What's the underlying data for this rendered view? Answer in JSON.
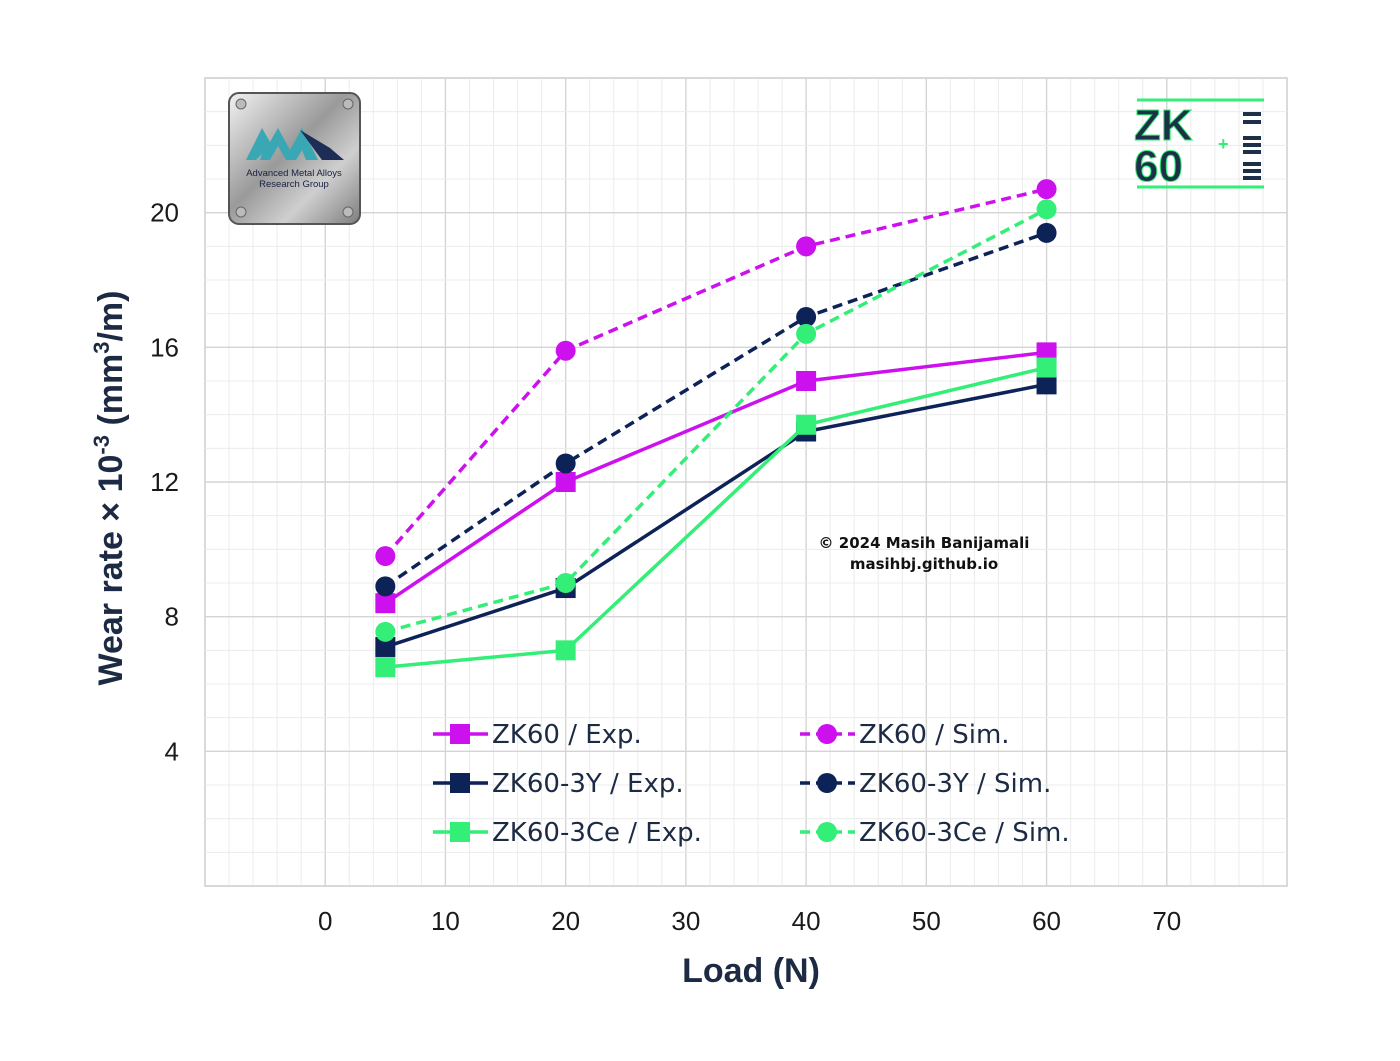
{
  "chart_data": {
    "type": "line",
    "xlabel": "Load (N)",
    "ylabel_main": "Wear rate × 10",
    "ylabel_exp": "-3",
    "ylabel_unit_pre": " (mm",
    "ylabel_unit_exp": "3",
    "ylabel_unit_post": "/m)",
    "xlim": [
      -10,
      80
    ],
    "ylim": [
      0,
      24
    ],
    "x_ticks": [
      0,
      10,
      20,
      30,
      40,
      50,
      60,
      70
    ],
    "y_ticks": [
      4,
      8,
      12,
      16,
      20
    ],
    "grid": true,
    "legend_position": "lower-center",
    "x": [
      5,
      20,
      40,
      60
    ],
    "series": [
      {
        "name": "ZK60 / Exp.",
        "values": [
          8.4,
          12.0,
          15.0,
          15.85
        ],
        "color": "#cc11ee",
        "dash": "solid",
        "marker": "square"
      },
      {
        "name": "ZK60 / Sim.",
        "values": [
          9.8,
          15.9,
          19.0,
          20.7
        ],
        "color": "#cc11ee",
        "dash": "dashed",
        "marker": "circle"
      },
      {
        "name": "ZK60-3Y / Exp.",
        "values": [
          7.1,
          8.85,
          13.5,
          14.9
        ],
        "color": "#0d2257",
        "dash": "solid",
        "marker": "square"
      },
      {
        "name": "ZK60-3Y / Sim.",
        "values": [
          8.9,
          12.55,
          16.9,
          19.4
        ],
        "color": "#0d2257",
        "dash": "dashed",
        "marker": "circle"
      },
      {
        "name": "ZK60-3Ce / Exp.",
        "values": [
          6.5,
          7.0,
          13.7,
          15.4
        ],
        "color": "#33ee77",
        "dash": "solid",
        "marker": "square"
      },
      {
        "name": "ZK60-3Ce / Sim.",
        "values": [
          7.55,
          9.0,
          16.4,
          20.1
        ],
        "color": "#33ee77",
        "dash": "dashed",
        "marker": "circle"
      }
    ],
    "annotations": [
      "© 2024 Masih Banijamali",
      "masihbj.github.io"
    ]
  },
  "logos": {
    "left_text_line1": "Advanced Metal Alloys",
    "left_text_line2": "Research Group",
    "left_mark": "AMA",
    "right_mark_top": "ZK",
    "right_mark_bottom": "60"
  }
}
